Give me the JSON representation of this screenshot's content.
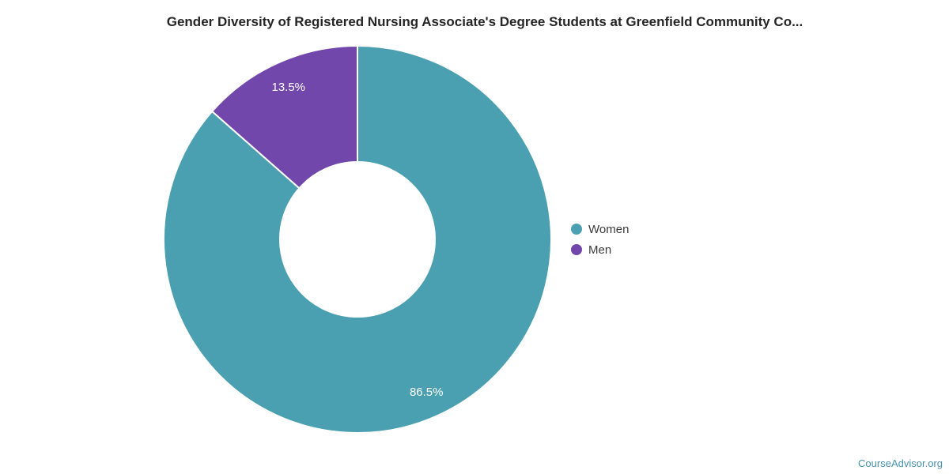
{
  "title": "Gender Diversity of Registered Nursing Associate's Degree Students at Greenfield Community Co...",
  "source_link": "CourseAdvisor.org",
  "colors": {
    "women": "#4AA0B0",
    "men": "#7147AB",
    "title_text": "#252525",
    "legend_text": "#3a3a3a",
    "slice_label_text": "#ffffff",
    "source_link_text": "#4791AC",
    "background": "#ffffff",
    "slice_separator": "#ffffff"
  },
  "legend": {
    "items": [
      {
        "label": "Women",
        "color": "#4AA0B0"
      },
      {
        "label": "Men",
        "color": "#7147AB"
      }
    ]
  },
  "chart_data": {
    "type": "pie",
    "subtype": "donut",
    "title": "Gender Diversity of Registered Nursing Associate's Degree Students at Greenfield Community Co...",
    "categories": [
      "Women",
      "Men"
    ],
    "values": [
      86.5,
      13.5
    ],
    "slice_labels": [
      "86.5%",
      "13.5%"
    ],
    "colors": [
      "#4AA0B0",
      "#7147AB"
    ],
    "unit": "%",
    "start_angle_deg": 0,
    "direction": "clockwise",
    "legend_position": "right",
    "inner_radius_ratio": 0.4,
    "grid": false
  }
}
